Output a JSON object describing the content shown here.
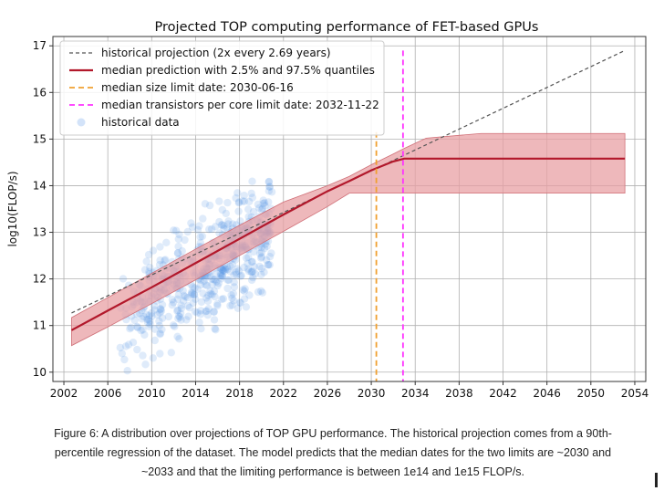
{
  "chart_data": {
    "type": "line",
    "title": "Projected TOP computing performance of FET-based GPUs",
    "xlabel": "",
    "ylabel": "log10(FLOP/s)",
    "xlim": [
      2001,
      2055
    ],
    "ylim": [
      9.8,
      17.2
    ],
    "xticks": [
      2002,
      2006,
      2010,
      2014,
      2018,
      2022,
      2026,
      2030,
      2034,
      2038,
      2042,
      2046,
      2050,
      2054
    ],
    "yticks": [
      10,
      11,
      12,
      13,
      14,
      15,
      16,
      17
    ],
    "grid": true,
    "legend_position": "top-left",
    "series": [
      {
        "name": "historical projection (2x every 2.69 years)",
        "kind": "dashed-line",
        "color": "#555555",
        "x": [
          2002.7,
          2053.1
        ],
        "y": [
          11.27,
          16.9
        ]
      },
      {
        "name": "median prediction with 2.5% and 97.5% quantiles",
        "kind": "line-with-band",
        "color": "#b2182b",
        "band_color": "#e8a0a4",
        "x": [
          2002.7,
          2006,
          2010,
          2014,
          2018,
          2022,
          2026,
          2028,
          2030,
          2032,
          2033,
          2035,
          2040,
          2053.1
        ],
        "y": [
          10.9,
          11.32,
          11.82,
          12.34,
          12.86,
          13.38,
          13.88,
          14.1,
          14.33,
          14.52,
          14.58,
          14.58,
          14.58,
          14.58
        ],
        "lower": [
          10.57,
          10.97,
          11.47,
          11.98,
          12.5,
          13.02,
          13.55,
          13.84,
          13.84,
          13.84,
          13.84,
          13.84,
          13.84,
          13.84
        ],
        "upper": [
          11.17,
          11.6,
          12.12,
          12.64,
          13.15,
          13.65,
          14.0,
          14.2,
          14.45,
          14.68,
          14.8,
          15.02,
          15.12,
          15.12
        ]
      },
      {
        "name": "median size limit date: 2030-06-16",
        "kind": "vline",
        "color": "#f0a030",
        "x": 2030.46
      },
      {
        "name": "median transistors per core limit date: 2032-11-22",
        "kind": "vline",
        "color": "#ff33ff",
        "x": 2032.89
      },
      {
        "name": "historical data",
        "kind": "scatter",
        "color": "#4f8fe6",
        "x_range": [
          2007,
          2021
        ],
        "trend_intercept_2007": 11.2,
        "trend_slope_per_year": 0.145,
        "spread": 0.55
      }
    ]
  },
  "caption": {
    "line1": "Figure 6: A distribution over projections of TOP GPU performance. The historical projection comes from a 90th-",
    "line2": "percentile regression of the dataset. The model predicts that the median dates for the two limits are ~2030 and",
    "line3": "~2033 and that the limiting performance is between 1e14 and 1e15 FLOP/s."
  }
}
